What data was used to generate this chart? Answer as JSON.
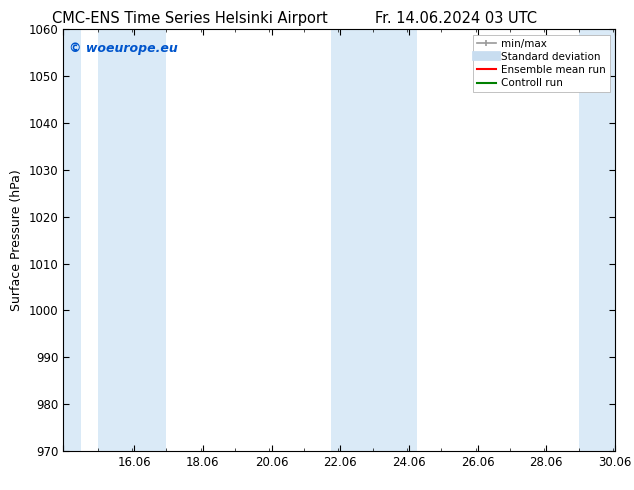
{
  "title_left": "CMC-ENS Time Series Helsinki Airport",
  "title_right": "Fr. 14.06.2024 03 UTC",
  "ylabel": "Surface Pressure (hPa)",
  "xlim": [
    14.0,
    30.06
  ],
  "ylim": [
    970,
    1060
  ],
  "yticks": [
    970,
    980,
    990,
    1000,
    1010,
    1020,
    1030,
    1040,
    1050,
    1060
  ],
  "xtick_positions": [
    14.0,
    16.06,
    18.06,
    20.06,
    22.06,
    24.06,
    26.06,
    28.06,
    30.06
  ],
  "xtick_labels": [
    "",
    "16.06",
    "18.06",
    "20.06",
    "22.06",
    "24.06",
    "26.06",
    "28.06",
    "30.06"
  ],
  "shaded_bands": [
    {
      "x_start": 14.0,
      "x_end": 14.5,
      "color": "#daeaf7"
    },
    {
      "x_start": 15.0,
      "x_end": 16.5,
      "color": "#daeaf7"
    },
    {
      "x_start": 16.5,
      "x_end": 17.0,
      "color": "#daeaf7"
    },
    {
      "x_start": 21.8,
      "x_end": 22.8,
      "color": "#daeaf7"
    },
    {
      "x_start": 22.8,
      "x_end": 24.3,
      "color": "#daeaf7"
    },
    {
      "x_start": 29.0,
      "x_end": 30.1,
      "color": "#daeaf7"
    }
  ],
  "watermark_text": "© woeurope.eu",
  "watermark_color": "#0055cc",
  "legend_entries": [
    {
      "label": "min/max",
      "color": "#999999",
      "lw": 1.2,
      "type": "line_with_caps"
    },
    {
      "label": "Standard deviation",
      "color": "#c8ddf0",
      "lw": 7,
      "type": "line"
    },
    {
      "label": "Ensemble mean run",
      "color": "red",
      "lw": 1.5,
      "type": "line"
    },
    {
      "label": "Controll run",
      "color": "green",
      "lw": 1.5,
      "type": "line"
    }
  ],
  "bg_color": "#ffffff",
  "plot_bg_color": "#ffffff",
  "title_fontsize": 10.5,
  "label_fontsize": 9,
  "tick_fontsize": 8.5,
  "legend_fontsize": 7.5
}
